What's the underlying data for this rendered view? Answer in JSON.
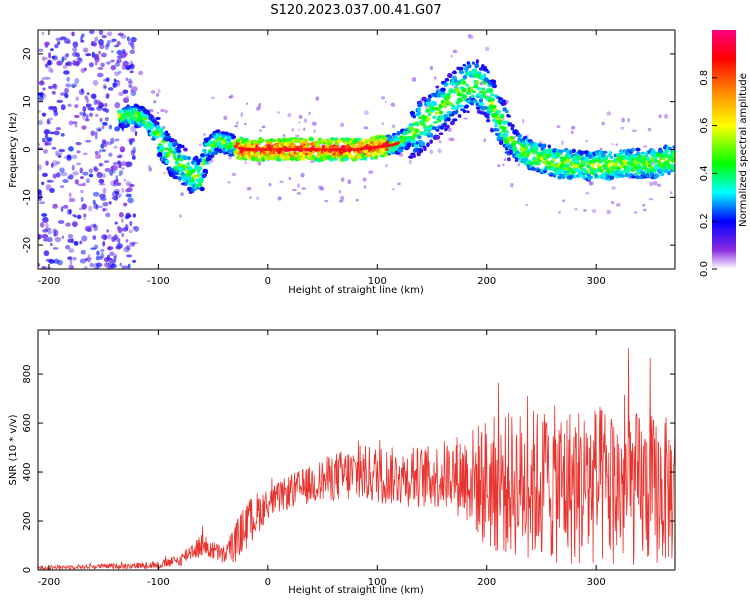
{
  "title": "S120.2023.037.00.41.G07",
  "chart_data": [
    {
      "type": "heatmap",
      "xlabel": "Height of straight line (km)",
      "ylabel": "Frequency (Hz)",
      "xlim": [
        -210,
        372
      ],
      "ylim": [
        -25,
        25
      ],
      "xticks": [
        -200,
        -100,
        0,
        100,
        200,
        300
      ],
      "yticks": [
        -20,
        -10,
        0,
        10,
        20
      ],
      "colorbar": {
        "label": "Normalized spectral amplitude",
        "range": [
          0,
          1
        ],
        "ticks": [
          "0.0",
          "0.2",
          "0.4",
          "0.6",
          "0.8"
        ],
        "colors": [
          "#ffffff",
          "#6a0dff",
          "#0000ff",
          "#00ffff",
          "#00ff00",
          "#ffff00",
          "#ff8000",
          "#ff0000",
          "#ff0080"
        ]
      },
      "ridge": {
        "x": [
          -135,
          -115,
          -100,
          -90,
          -80,
          -70,
          -62,
          -55,
          -45,
          -35,
          -20,
          0,
          20,
          50,
          80,
          100,
          115,
          125,
          135,
          150,
          165,
          180,
          190,
          200,
          210,
          220,
          230,
          250,
          270,
          290,
          310,
          330,
          350,
          372
        ],
        "freq": [
          7,
          7,
          3,
          -1,
          -3,
          -5,
          -6,
          0,
          2,
          1,
          0,
          0,
          0,
          0,
          0,
          0.5,
          1,
          2,
          4,
          7,
          10,
          13,
          14,
          12,
          7,
          3,
          0,
          -2,
          -3,
          -3.5,
          -3.5,
          -3,
          -3,
          -2
        ]
      }
    },
    {
      "type": "line",
      "xlabel": "Height of straight line (km)",
      "ylabel": "SNR (10 * v/v)",
      "xlim": [
        -210,
        372
      ],
      "ylim": [
        0,
        980
      ],
      "xticks": [
        -200,
        -100,
        0,
        100,
        200,
        300
      ],
      "yticks": [
        0,
        200,
        400,
        600,
        800
      ],
      "color": "#e8332e",
      "envelope": {
        "x": [
          -210,
          -150,
          -100,
          -80,
          -70,
          -60,
          -50,
          -40,
          -30,
          -20,
          -10,
          0,
          20,
          40,
          60,
          80,
          100,
          120,
          150,
          170,
          185,
          200,
          250,
          300,
          372
        ],
        "mean": [
          10,
          15,
          20,
          40,
          80,
          100,
          80,
          60,
          110,
          180,
          230,
          270,
          320,
          350,
          380,
          390,
          390,
          380,
          380,
          390,
          380,
          350,
          350,
          340,
          320
        ],
        "spread": [
          8,
          10,
          15,
          25,
          40,
          50,
          40,
          40,
          80,
          100,
          90,
          60,
          70,
          80,
          100,
          120,
          120,
          120,
          130,
          160,
          200,
          280,
          320,
          340,
          300
        ]
      }
    }
  ]
}
